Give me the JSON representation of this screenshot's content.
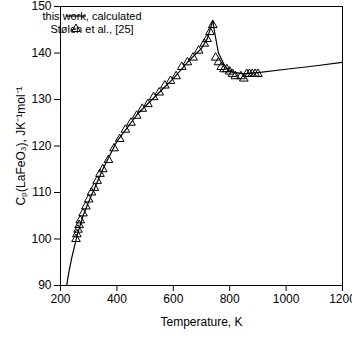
{
  "chart_data": {
    "type": "line",
    "x_label": "Temperature, K",
    "y_label": "Cₚ(LaFeO₃), JK⁻¹mol⁻¹",
    "xlim": [
      200,
      1200
    ],
    "xticks": [
      200,
      400,
      600,
      800,
      1000,
      1200
    ],
    "ylim": [
      90,
      150
    ],
    "yticks": [
      90,
      100,
      110,
      120,
      130,
      140,
      150
    ],
    "legend": "top-left",
    "grid": false,
    "series": [
      {
        "name": "this work, calculated",
        "type": "line",
        "color": "#000000",
        "line_style": "solid",
        "x": [
          222,
          230,
          240,
          250,
          260,
          280,
          300,
          325,
          350,
          375,
          400,
          425,
          450,
          475,
          500,
          550,
          600,
          650,
          700,
          720,
          735,
          740,
          745,
          760,
          780,
          800,
          850,
          900,
          1000,
          1100,
          1200
        ],
        "values": [
          90,
          93,
          96,
          98.5,
          101,
          105,
          108,
          111.5,
          115,
          118,
          121,
          123,
          125,
          127,
          128.5,
          131.5,
          134.5,
          138,
          141,
          143,
          146,
          147,
          145,
          140,
          137.5,
          136,
          135.5,
          135.8,
          136.5,
          137.2,
          138
        ]
      },
      {
        "name": "Stølen et al., [25]",
        "type": "scatter",
        "marker": "triangle",
        "color": "#000000",
        "x": [
          255,
          258,
          262,
          266,
          270,
          280,
          290,
          300,
          310,
          320,
          330,
          340,
          350,
          370,
          390,
          410,
          430,
          450,
          470,
          490,
          510,
          530,
          550,
          570,
          590,
          610,
          630,
          650,
          670,
          690,
          710,
          720,
          730,
          740,
          750,
          760,
          770,
          780,
          790,
          800,
          810,
          820,
          840,
          850,
          860,
          870,
          880,
          890,
          900
        ],
        "values": [
          100,
          101,
          102,
          103,
          104,
          105.5,
          107,
          108.5,
          110,
          111,
          112.5,
          114,
          115,
          117,
          119.5,
          121.5,
          123.5,
          125,
          126.5,
          128,
          129,
          130.5,
          131.5,
          133,
          134,
          135,
          137,
          138,
          139,
          140.5,
          142,
          143,
          144.5,
          146,
          139,
          138,
          137,
          136.5,
          136.5,
          136,
          135.5,
          135,
          135,
          134.5,
          135.5,
          135.5,
          135.5,
          135.5,
          135.5
        ]
      }
    ]
  }
}
